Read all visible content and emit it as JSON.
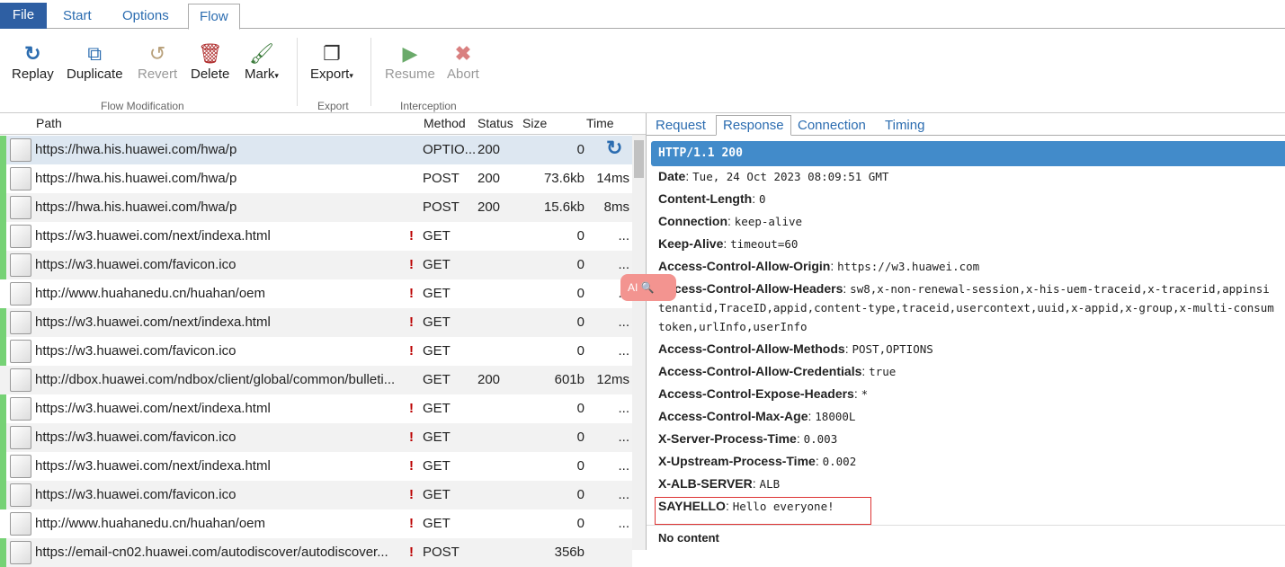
{
  "menu": {
    "tabs": [
      "File",
      "Start",
      "Options",
      "Flow"
    ],
    "active": "Flow"
  },
  "ribbon": {
    "buttons": [
      {
        "label": "Replay",
        "icon": "refresh-icon",
        "enabled": true
      },
      {
        "label": "Duplicate",
        "icon": "duplicate-icon",
        "enabled": true
      },
      {
        "label": "Revert",
        "icon": "revert-icon",
        "enabled": false
      },
      {
        "label": "Delete",
        "icon": "trash-icon",
        "enabled": true
      },
      {
        "label": "Mark",
        "icon": "brush-icon",
        "enabled": true,
        "dropdown": "▾"
      },
      {
        "label": "Export",
        "icon": "export-icon",
        "enabled": true,
        "dropdown": "▾"
      },
      {
        "label": "Resume",
        "icon": "play-icon",
        "enabled": false
      },
      {
        "label": "Abort",
        "icon": "close-icon",
        "enabled": false
      }
    ],
    "groups": [
      "Flow Modification",
      "Export",
      "Interception"
    ]
  },
  "grid": {
    "columns": [
      "Path",
      "Method",
      "Status",
      "Size",
      "Time"
    ],
    "rows": [
      {
        "path": "https://hwa.his.huawei.com/hwa/p",
        "err": "",
        "method": "OPTIO...",
        "status": "200",
        "size": "0",
        "time": "",
        "marked": true,
        "selected": true
      },
      {
        "path": "https://hwa.his.huawei.com/hwa/p",
        "err": "",
        "method": "POST",
        "status": "200",
        "size": "73.6kb",
        "time": "14ms",
        "marked": true
      },
      {
        "path": "https://hwa.his.huawei.com/hwa/p",
        "err": "",
        "method": "POST",
        "status": "200",
        "size": "15.6kb",
        "time": "8ms",
        "marked": true
      },
      {
        "path": "https://w3.huawei.com/next/indexa.html",
        "err": "!",
        "method": "GET",
        "status": "",
        "size": "0",
        "time": "...",
        "marked": true
      },
      {
        "path": "https://w3.huawei.com/favicon.ico",
        "err": "!",
        "method": "GET",
        "status": "",
        "size": "0",
        "time": "...",
        "marked": true
      },
      {
        "path": "http://www.huahanedu.cn/huahan/oem",
        "err": "!",
        "method": "GET",
        "status": "",
        "size": "0",
        "time": "...",
        "marked": false
      },
      {
        "path": "https://w3.huawei.com/next/indexa.html",
        "err": "!",
        "method": "GET",
        "status": "",
        "size": "0",
        "time": "...",
        "marked": true
      },
      {
        "path": "https://w3.huawei.com/favicon.ico",
        "err": "!",
        "method": "GET",
        "status": "",
        "size": "0",
        "time": "...",
        "marked": true
      },
      {
        "path": "http://dbox.huawei.com/ndbox/client/global/common/bulleti...",
        "err": "",
        "method": "GET",
        "status": "200",
        "size": "601b",
        "time": "12ms",
        "marked": false
      },
      {
        "path": "https://w3.huawei.com/next/indexa.html",
        "err": "!",
        "method": "GET",
        "status": "",
        "size": "0",
        "time": "...",
        "marked": true
      },
      {
        "path": "https://w3.huawei.com/favicon.ico",
        "err": "!",
        "method": "GET",
        "status": "",
        "size": "0",
        "time": "...",
        "marked": true
      },
      {
        "path": "https://w3.huawei.com/next/indexa.html",
        "err": "!",
        "method": "GET",
        "status": "",
        "size": "0",
        "time": "...",
        "marked": true
      },
      {
        "path": "https://w3.huawei.com/favicon.ico",
        "err": "!",
        "method": "GET",
        "status": "",
        "size": "0",
        "time": "...",
        "marked": true
      },
      {
        "path": "http://www.huahanedu.cn/huahan/oem",
        "err": "!",
        "method": "GET",
        "status": "",
        "size": "0",
        "time": "...",
        "marked": false
      },
      {
        "path": "https://email-cn02.huawei.com/autodiscover/autodiscover...",
        "err": "!",
        "method": "POST",
        "status": "",
        "size": "356b",
        "time": "",
        "marked": true
      }
    ]
  },
  "detail": {
    "tabs": [
      "Request",
      "Response",
      "Connection",
      "Timing"
    ],
    "active": "Response",
    "status_line": "HTTP/1.1 200",
    "headers": [
      {
        "name": "Date",
        "value": "Tue, 24 Oct 2023 08:09:51 GMT"
      },
      {
        "name": "Content-Length",
        "value": "0"
      },
      {
        "name": "Connection",
        "value": "keep-alive"
      },
      {
        "name": "Keep-Alive",
        "value": "timeout=60"
      },
      {
        "name": "Access-Control-Allow-Origin",
        "value": "https://w3.huawei.com"
      },
      {
        "name": "Access-Control-Allow-Headers",
        "value": "sw8,x-non-renewal-session,x-his-uem-traceid,x-tracerid,appinsi",
        "cont": [
          "tenantid,TraceID,appid,content-type,traceid,usercontext,uuid,x-appid,x-group,x-multi-consum",
          "token,urlInfo,userInfo"
        ]
      },
      {
        "name": "Access-Control-Allow-Methods",
        "value": "POST,OPTIONS"
      },
      {
        "name": "Access-Control-Allow-Credentials",
        "value": "true"
      },
      {
        "name": "Access-Control-Expose-Headers",
        "value": "*"
      },
      {
        "name": "Access-Control-Max-Age",
        "value": "18000L"
      },
      {
        "name": "X-Server-Process-Time",
        "value": "0.003"
      },
      {
        "name": "X-Upstream-Process-Time",
        "value": "0.002"
      },
      {
        "name": "X-ALB-SERVER",
        "value": "ALB"
      },
      {
        "name": "SAYHELLO",
        "value": "Hello everyone!"
      }
    ],
    "body": "No content"
  },
  "overlay": {
    "label": "AI"
  }
}
